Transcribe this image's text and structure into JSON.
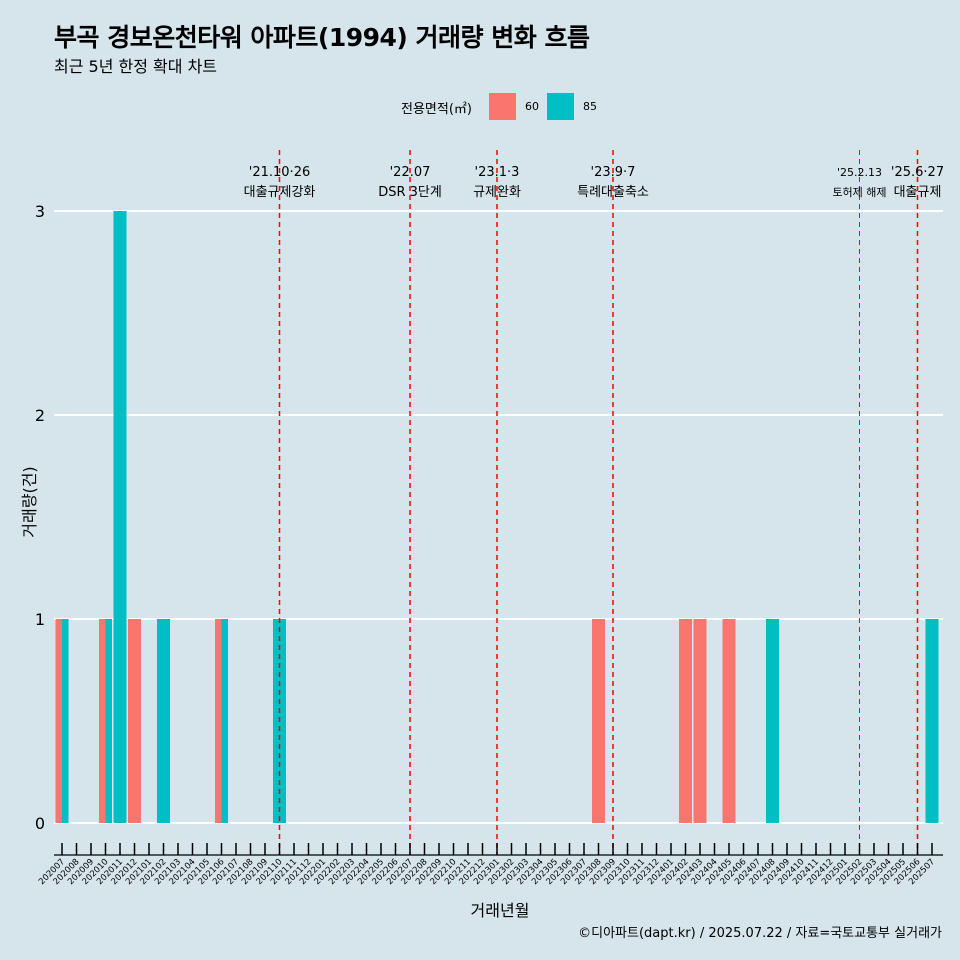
{
  "title": "부곡 경보온천타워 아파트(1994) 거래량 변화 흐름",
  "subtitle": "최근 5년 한정 확대 차트",
  "caption": "©디아파트(dapt.kr) / 2025.07.22 / 자료=국토교통부 실거래가",
  "legend": {
    "title": "전용면적(㎡)",
    "items": [
      {
        "label": "60",
        "color": "#f8766d"
      },
      {
        "label": "85",
        "color": "#00bfc4"
      }
    ]
  },
  "chart_data": {
    "type": "bar",
    "xlabel": "거래년월",
    "ylabel": "거래량(건)",
    "ylim": [
      0,
      3
    ],
    "yticks": [
      0,
      1,
      2,
      3
    ],
    "categories": [
      "202007",
      "202008",
      "202009",
      "202010",
      "202011",
      "202012",
      "202101",
      "202102",
      "202103",
      "202104",
      "202105",
      "202106",
      "202107",
      "202108",
      "202109",
      "202110",
      "202111",
      "202112",
      "202201",
      "202202",
      "202203",
      "202204",
      "202205",
      "202206",
      "202207",
      "202208",
      "202209",
      "202210",
      "202211",
      "202212",
      "202301",
      "202302",
      "202303",
      "202304",
      "202305",
      "202306",
      "202307",
      "202308",
      "202309",
      "202310",
      "202311",
      "202312",
      "202401",
      "202402",
      "202403",
      "202404",
      "202405",
      "202406",
      "202407",
      "202408",
      "202409",
      "202410",
      "202411",
      "202412",
      "202501",
      "202502",
      "202503",
      "202504",
      "202505",
      "202506",
      "202507"
    ],
    "series": [
      {
        "name": "60",
        "color": "#f8766d",
        "values": [
          1,
          0,
          0,
          1,
          0,
          1,
          0,
          0,
          0,
          0,
          0,
          1,
          0,
          0,
          0,
          0,
          0,
          0,
          0,
          0,
          0,
          0,
          0,
          0,
          0,
          0,
          0,
          0,
          0,
          0,
          0,
          0,
          0,
          0,
          0,
          0,
          0,
          1,
          0,
          0,
          0,
          0,
          0,
          1,
          1,
          0,
          1,
          0,
          0,
          0,
          0,
          0,
          0,
          0,
          0,
          0,
          0,
          0,
          0,
          0,
          0
        ]
      },
      {
        "name": "85",
        "color": "#00bfc4",
        "values": [
          1,
          0,
          0,
          1,
          3,
          0,
          0,
          1,
          0,
          0,
          0,
          1,
          0,
          0,
          0,
          1,
          0,
          0,
          0,
          0,
          0,
          0,
          0,
          0,
          0,
          0,
          0,
          0,
          0,
          0,
          0,
          0,
          0,
          0,
          0,
          0,
          0,
          0,
          0,
          0,
          0,
          0,
          0,
          0,
          0,
          0,
          0,
          0,
          0,
          1,
          0,
          0,
          0,
          0,
          0,
          0,
          0,
          0,
          0,
          0,
          1
        ]
      }
    ],
    "annotations": [
      {
        "category": "202110",
        "date": "'21.10·26",
        "label": "대출규제강화"
      },
      {
        "category": "202207",
        "date": "'22.07",
        "label": "DSR 3단계"
      },
      {
        "category": "202301",
        "date": "'23.1·3",
        "label": "규제완화"
      },
      {
        "category": "202309",
        "date": "'23.9·7",
        "label": "특례대출축소"
      },
      {
        "category": "202502",
        "date": "'25.2.13",
        "label": "토허제 해제",
        "small": true
      },
      {
        "category": "202506",
        "date": "'25.6·27",
        "label": "대출규제"
      }
    ],
    "grid": "horizontal",
    "legend_position": "top"
  }
}
